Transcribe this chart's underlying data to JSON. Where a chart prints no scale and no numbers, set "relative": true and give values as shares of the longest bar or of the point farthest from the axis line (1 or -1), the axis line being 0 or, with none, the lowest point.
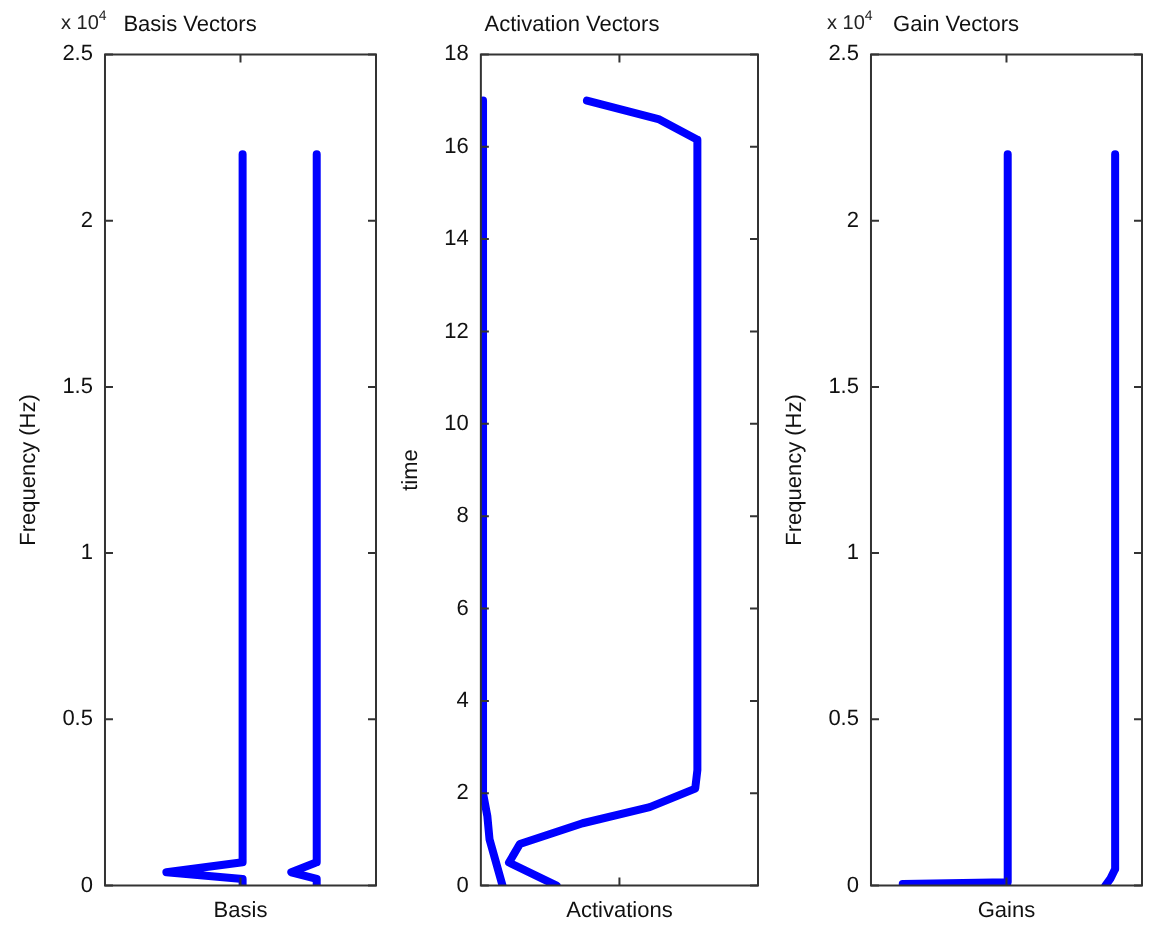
{
  "chart_data": [
    {
      "type": "line",
      "orientation": "horizontal",
      "relative": true,
      "title": "Basis Vectors",
      "xlabel": "Basis",
      "ylabel": "Frequency (Hz)",
      "annotations": [
        "x 10$^{4}$"
      ],
      "ylim": [
        0,
        2.5
      ],
      "yticks": [
        0,
        0.5,
        1,
        1.5,
        2,
        2.5
      ],
      "tick_labels": "y",
      "grid": false,
      "legend": false,
      "marker": "none",
      "line_style": "solid",
      "series": [
        {
          "color": "#0000ff",
          "x": [
            2.2,
            0.07,
            0.04,
            0.02,
            0
          ],
          "values": [
            0.65,
            0.65,
            0.29,
            0.65,
            0.65
          ]
        },
        {
          "color": "#0000ff",
          "x": [
            2.2,
            0.07,
            0.04,
            0.02,
            0
          ],
          "values": [
            1,
            1,
            0.88,
            1,
            1
          ]
        }
      ]
    },
    {
      "type": "line",
      "orientation": "horizontal",
      "relative": true,
      "title": "Activation Vectors",
      "xlabel": "Activations",
      "ylabel": "time",
      "ylim": [
        0,
        18
      ],
      "yticks": [
        0,
        2,
        4,
        6,
        8,
        10,
        12,
        14,
        16,
        18
      ],
      "tick_labels": "y",
      "grid": false,
      "legend": false,
      "marker": "none",
      "line_style": "solid",
      "series": [
        {
          "color": "#0000ff",
          "x": [
            17,
            2,
            1.5,
            1,
            0
          ],
          "values": [
            0.01,
            0.01,
            0.03,
            0.04,
            0.1
          ]
        },
        {
          "color": "#0000ff",
          "x": [
            17,
            16.6,
            16.15,
            2.5,
            2.1,
            1.7,
            1.35,
            0.9,
            0.5,
            0
          ],
          "values": [
            0.49,
            0.82,
            1,
            1,
            0.99,
            0.78,
            0.47,
            0.18,
            0.13,
            0.35
          ]
        }
      ]
    },
    {
      "type": "line",
      "orientation": "horizontal",
      "relative": true,
      "title": "Gain Vectors",
      "xlabel": "Gains",
      "ylabel": "Frequency (Hz)",
      "annotations": [
        "x 10$^{4}$"
      ],
      "ylim": [
        0,
        2.5
      ],
      "yticks": [
        0,
        0.5,
        1,
        1.5,
        2,
        2.5
      ],
      "tick_labels": "y",
      "grid": false,
      "legend": false,
      "marker": "none",
      "line_style": "solid",
      "series": [
        {
          "color": "#0000ff",
          "x": [
            2.2,
            0.01,
            0.005
          ],
          "values": [
            0.56,
            0.56,
            0.13
          ]
        },
        {
          "color": "#0000ff",
          "x": [
            2.2,
            0.05,
            0.02,
            0
          ],
          "values": [
            1,
            1,
            0.98,
            0.96
          ]
        }
      ]
    }
  ]
}
